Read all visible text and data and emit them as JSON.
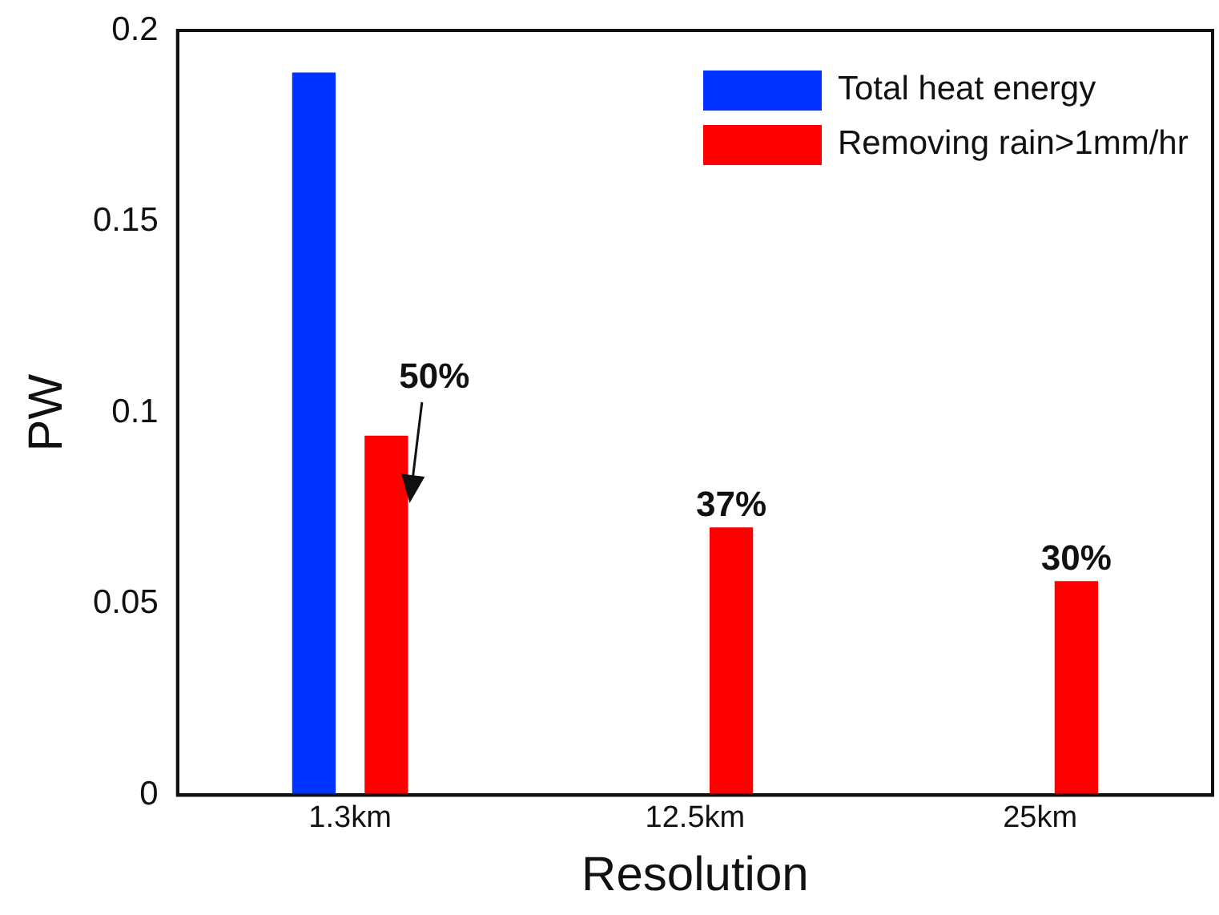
{
  "chart_data": {
    "type": "bar",
    "xlabel": "Resolution",
    "ylabel": "PW",
    "categories": [
      "1.3km",
      "12.5km",
      "25km"
    ],
    "series": [
      {
        "name": "Total heat energy",
        "color": "#0033ff",
        "values": [
          0.189,
          null,
          null
        ]
      },
      {
        "name": "Removing rain>1mm/hr",
        "color": "#ff0000",
        "values": [
          0.094,
          0.07,
          0.056
        ]
      }
    ],
    "annotations": [
      "50%",
      "37%",
      "30%"
    ],
    "ylim": [
      0,
      0.2
    ],
    "yticks": [
      0,
      0.05,
      0.1,
      0.15,
      0.2
    ],
    "grid": false,
    "legend": "top right"
  }
}
